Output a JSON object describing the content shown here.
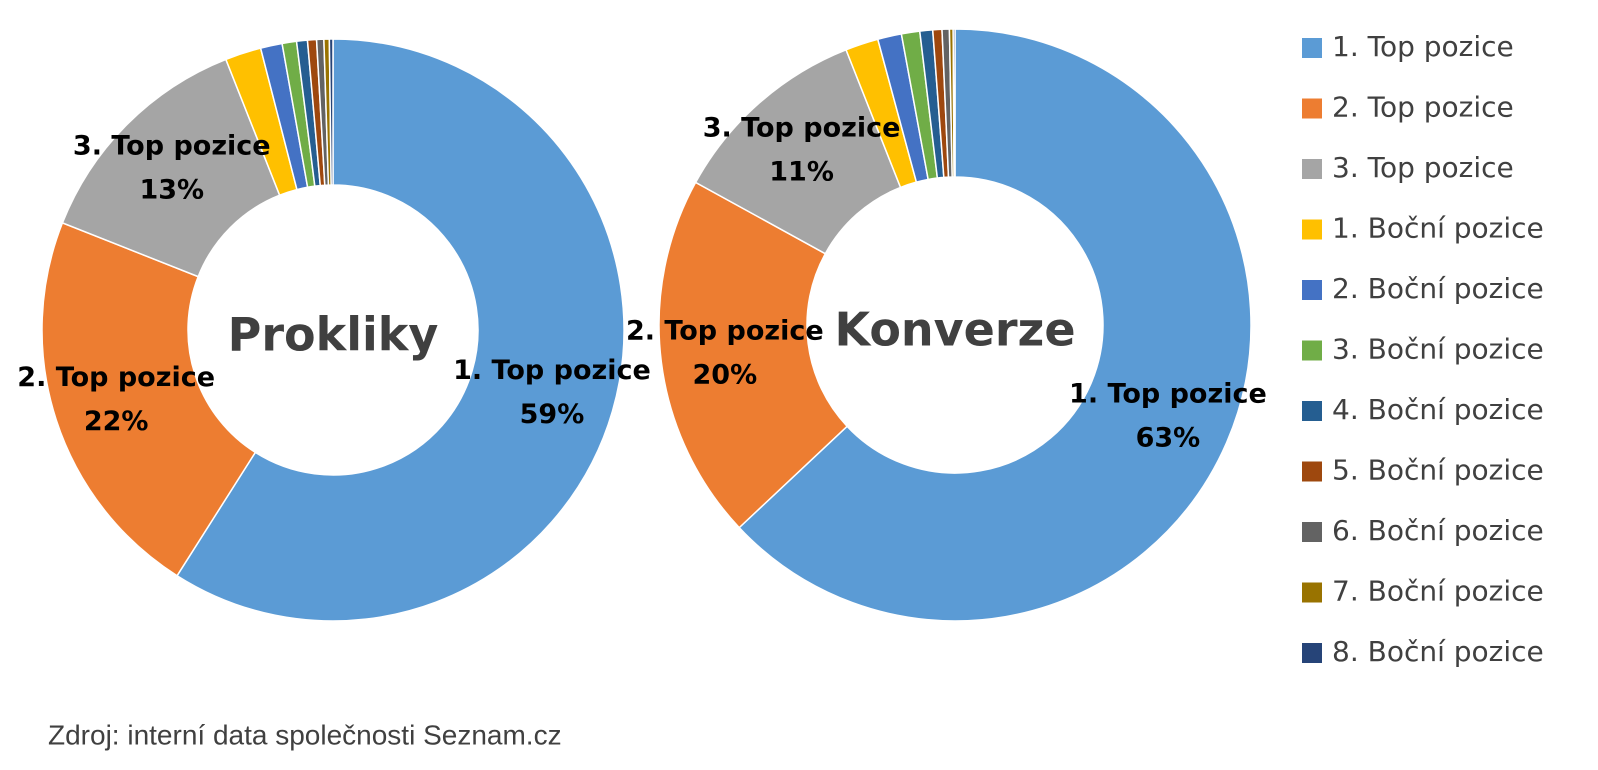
{
  "chart_data": [
    {
      "type": "donut",
      "title": "Prokliky",
      "categories": [
        "1. Top pozice",
        "2. Top pozice",
        "3. Top pozice",
        "1. Boční pozice",
        "2. Boční pozice",
        "3. Boční pozice",
        "4. Boční pozice",
        "5. Boční pozice",
        "6. Boční pozice",
        "7. Boční pozice",
        "8. Boční pozice"
      ],
      "values": [
        59,
        22,
        13,
        2,
        1.2,
        0.8,
        0.6,
        0.5,
        0.4,
        0.3,
        0.2
      ],
      "value_labels": [
        "59%",
        "22%",
        "13%",
        null,
        null,
        null,
        null,
        null,
        null,
        null,
        null
      ],
      "colors": [
        "#5b9bd5",
        "#ed7d31",
        "#a5a5a5",
        "#ffc000",
        "#4472c4",
        "#70ad47",
        "#255e91",
        "#9e480e",
        "#636363",
        "#997300",
        "#264478"
      ]
    },
    {
      "type": "donut",
      "title": "Konverze",
      "categories": [
        "1. Top pozice",
        "2. Top pozice",
        "3. Top pozice",
        "1. Boční pozice",
        "2. Boční pozice",
        "3. Boční pozice",
        "4. Boční pozice",
        "5. Boční pozice",
        "6. Boční pozice",
        "7. Boční pozice",
        "8. Boční pozice"
      ],
      "values": [
        63,
        20,
        11,
        1.8,
        1.3,
        1,
        0.7,
        0.5,
        0.4,
        0.2,
        0.1
      ],
      "value_labels": [
        "63%",
        "20%",
        "11%",
        null,
        null,
        null,
        null,
        null,
        null,
        null,
        null
      ],
      "colors": [
        "#5b9bd5",
        "#ed7d31",
        "#a5a5a5",
        "#ffc000",
        "#4472c4",
        "#70ad47",
        "#255e91",
        "#9e480e",
        "#636363",
        "#997300",
        "#264478"
      ]
    }
  ],
  "source": "Zdroj: interní data společnosti Seznam.cz"
}
